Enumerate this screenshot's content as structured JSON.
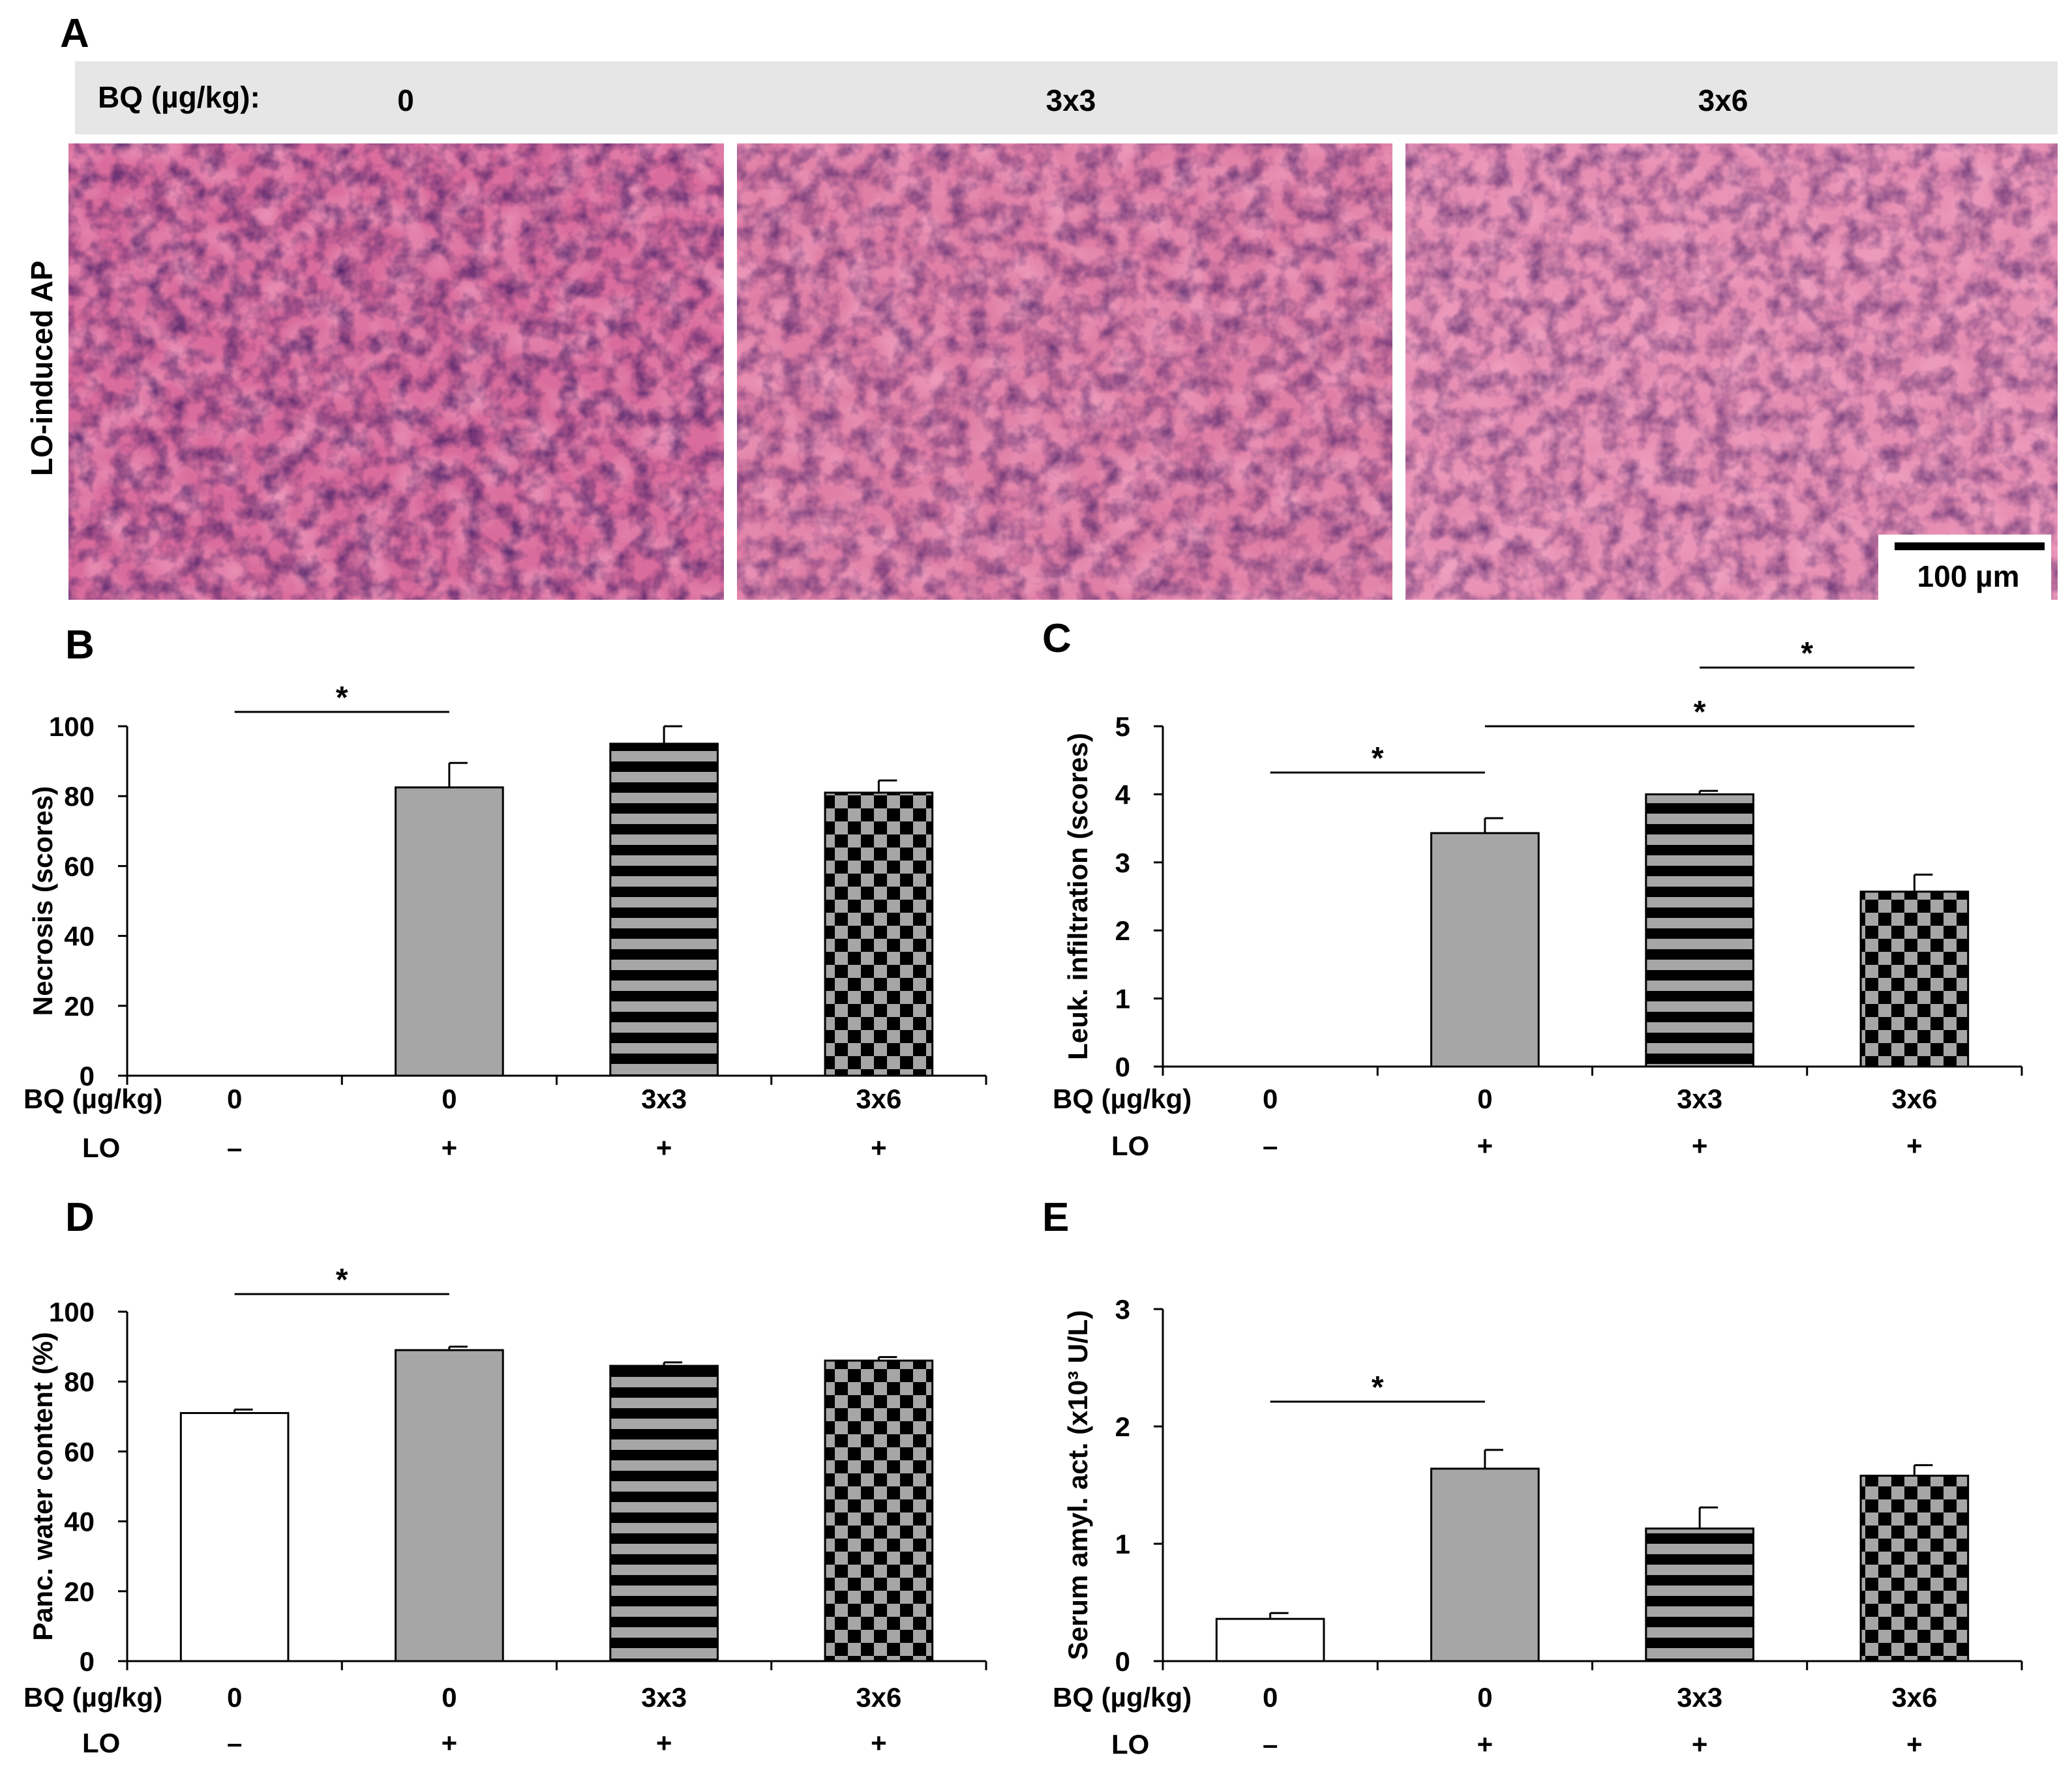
{
  "panel_letters": {
    "a": "A",
    "b": "B",
    "c": "C",
    "d": "D",
    "e": "E"
  },
  "histology": {
    "header_label": "BQ (µg/kg):",
    "doses": [
      "0",
      "3x3",
      "3x6"
    ],
    "row_label": "LO-induced AP",
    "scale_bar_label": "100 µm"
  },
  "colors": {
    "gray_fill": "#a6a6a6",
    "white_fill": "#ffffff",
    "bar_stroke": "#000000",
    "header_bg": "#e6e6e6",
    "tissue_pink": "#e07fa6",
    "tissue_purple": "#5a2a74",
    "tissue_background": "#d96c9c"
  },
  "chart_data": [
    {
      "id": "B",
      "type": "bar",
      "ylabel": "Necrosis (scores)",
      "ylim": [
        0,
        100
      ],
      "yticks": [
        "0",
        "20",
        "40",
        "60",
        "80",
        "100"
      ],
      "row1_label": "BQ (µg/kg)",
      "row2_label": "LO",
      "categories": [
        "0",
        "0",
        "3x3",
        "3x6"
      ],
      "lo": [
        "–",
        "+",
        "+",
        "+"
      ],
      "values": [
        0,
        82.5,
        95,
        81
      ],
      "errors": [
        0,
        7,
        5,
        3.5
      ],
      "patterns": [
        "white",
        "gray",
        "stripes",
        "checker"
      ],
      "significance": [
        {
          "from": 0,
          "to": 1,
          "label": "*"
        }
      ]
    },
    {
      "id": "C",
      "type": "bar",
      "ylabel": "Leuk. infiltration (scores)",
      "ylim": [
        0,
        5
      ],
      "yticks": [
        "0",
        "1",
        "2",
        "3",
        "4",
        "5"
      ],
      "row1_label": "BQ (µg/kg)",
      "row2_label": "LO",
      "categories": [
        "0",
        "0",
        "3x3",
        "3x6"
      ],
      "lo": [
        "–",
        "+",
        "+",
        "+"
      ],
      "values": [
        0,
        3.43,
        4.0,
        2.57
      ],
      "errors": [
        0,
        0.22,
        0.05,
        0.25
      ],
      "patterns": [
        "white",
        "gray",
        "stripes",
        "checker"
      ],
      "significance": [
        {
          "from": 0,
          "to": 1,
          "label": "*"
        },
        {
          "from": 1,
          "to": 3,
          "label": "*"
        },
        {
          "from": 2,
          "to": 3,
          "label": "*"
        }
      ]
    },
    {
      "id": "D",
      "type": "bar",
      "ylabel": "Panc. water content (%)",
      "ylim": [
        0,
        100
      ],
      "yticks": [
        "0",
        "20",
        "40",
        "60",
        "80",
        "100"
      ],
      "row1_label": "BQ (µg/kg)",
      "row2_label": "LO",
      "categories": [
        "0",
        "0",
        "3x3",
        "3x6"
      ],
      "lo": [
        "–",
        "+",
        "+",
        "+"
      ],
      "values": [
        71,
        89,
        84.5,
        86
      ],
      "errors": [
        1,
        1,
        1,
        1
      ],
      "patterns": [
        "white",
        "gray",
        "stripes",
        "checker"
      ],
      "significance": [
        {
          "from": 0,
          "to": 1,
          "label": "*"
        }
      ]
    },
    {
      "id": "E",
      "type": "bar",
      "ylabel": "Serum amyl. act. (x10³ U/L)",
      "ylim": [
        0,
        3
      ],
      "yticks": [
        "0",
        "1",
        "2",
        "3"
      ],
      "row1_label": "BQ (µg/kg)",
      "row2_label": "LO",
      "categories": [
        "0",
        "0",
        "3x3",
        "3x6"
      ],
      "lo": [
        "–",
        "+",
        "+",
        "+"
      ],
      "values": [
        0.36,
        1.64,
        1.13,
        1.58
      ],
      "errors": [
        0.05,
        0.16,
        0.18,
        0.09
      ],
      "patterns": [
        "white",
        "gray",
        "stripes",
        "checker"
      ],
      "significance": [
        {
          "from": 0,
          "to": 1,
          "label": "*"
        }
      ]
    }
  ]
}
